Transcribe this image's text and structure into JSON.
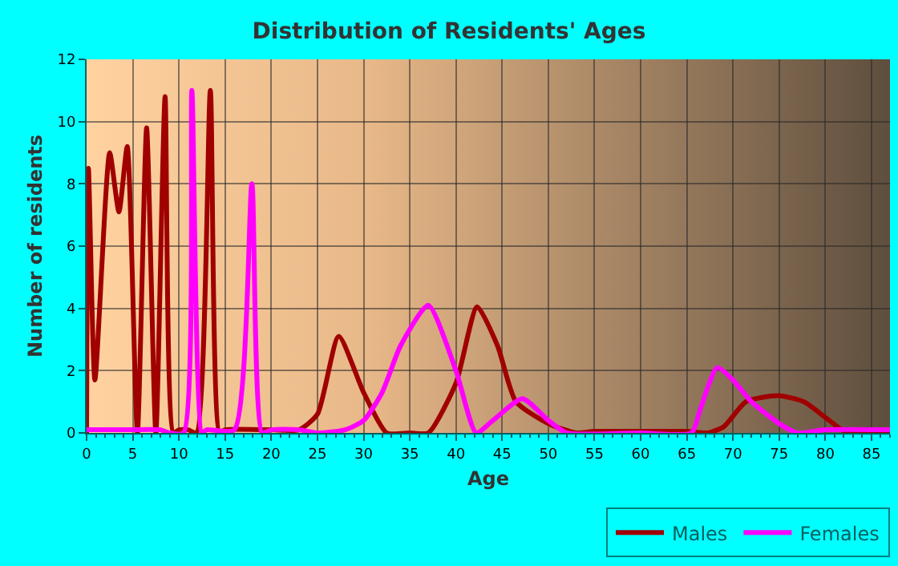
{
  "chart_data": {
    "type": "line",
    "title": "Distribution of Residents' Ages",
    "xlabel": "Age",
    "ylabel": "Number of residents",
    "xlim": [
      0,
      87
    ],
    "xticks": [
      0,
      5,
      10,
      15,
      20,
      25,
      30,
      35,
      40,
      45,
      50,
      55,
      60,
      65,
      70,
      75,
      80,
      85
    ],
    "ylim": [
      0,
      12
    ],
    "yticks": [
      0,
      2,
      4,
      6,
      8,
      10,
      12
    ],
    "grid": true,
    "legend": "bottom right",
    "marker": "none",
    "line_style": "solid",
    "series": [
      {
        "name": "Males",
        "color": "#a00000",
        "x": [
          0,
          0.2,
          0.9,
          2.5,
          3.5,
          4.4,
          5.5,
          6.5,
          7.5,
          8.5,
          9.4,
          10,
          11,
          11.9,
          13.4,
          14.4,
          15,
          20,
          23,
          25,
          27.3,
          30,
          32.5,
          35,
          37,
          40,
          42.3,
          44.5,
          46.5,
          50,
          53,
          55,
          60,
          65,
          67.3,
          69,
          71.4,
          74.9,
          77.7,
          80,
          82.4,
          87
        ],
        "values": [
          0,
          8.5,
          1.7,
          9,
          7.1,
          9.2,
          0,
          9.8,
          0,
          10.8,
          0,
          0.1,
          0.1,
          0,
          11,
          0,
          0.1,
          0.1,
          0.1,
          0.6,
          3.1,
          1.3,
          0,
          0,
          0,
          1.6,
          4.05,
          2.8,
          1,
          0.3,
          0,
          0.05,
          0.05,
          0.05,
          0,
          0.2,
          1,
          1.2,
          1,
          0.5,
          0,
          0
        ]
      },
      {
        "name": "Females",
        "color": "#ff00ff",
        "x": [
          0,
          4,
          8,
          9,
          10.5,
          11.4,
          12.5,
          13,
          16,
          17.9,
          19,
          20,
          23,
          25,
          28,
          30,
          32,
          34,
          37,
          40,
          42.2,
          44,
          47.2,
          50,
          52,
          60,
          65.5,
          66.5,
          68.3,
          70,
          72,
          75,
          77,
          80,
          87
        ],
        "values": [
          0.1,
          0.1,
          0.1,
          0,
          0,
          11,
          0,
          0.1,
          0.1,
          8,
          0,
          0.1,
          0.1,
          0,
          0.1,
          0.4,
          1.3,
          2.8,
          4.1,
          2,
          0,
          0.4,
          1.1,
          0.4,
          0,
          0,
          0,
          0.8,
          2.1,
          1.7,
          1,
          0.3,
          0,
          0.1,
          0.1
        ]
      }
    ]
  }
}
